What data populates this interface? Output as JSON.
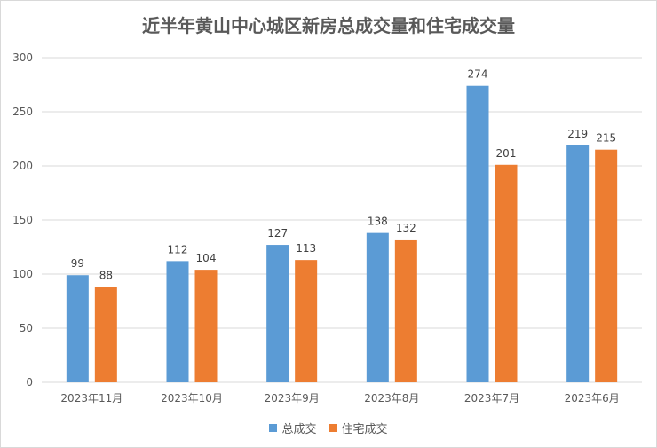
{
  "chart_data": {
    "type": "bar",
    "title": "近半年黄山中心城区新房总成交量和住宅成交量",
    "categories": [
      "2023年11月",
      "2023年10月",
      "2023年9月",
      "2023年8月",
      "2023年7月",
      "2023年6月"
    ],
    "series": [
      {
        "name": "总成交",
        "values": [
          99,
          112,
          127,
          138,
          274,
          219
        ],
        "color": "#5b9bd5"
      },
      {
        "name": "住宅成交",
        "values": [
          88,
          104,
          113,
          132,
          201,
          215
        ],
        "color": "#ed7d31"
      }
    ],
    "ylim": [
      0,
      300
    ],
    "yticks": [
      0,
      50,
      100,
      150,
      200,
      250,
      300
    ],
    "grid": true,
    "legend_position": "bottom",
    "xlabel": "",
    "ylabel": ""
  }
}
